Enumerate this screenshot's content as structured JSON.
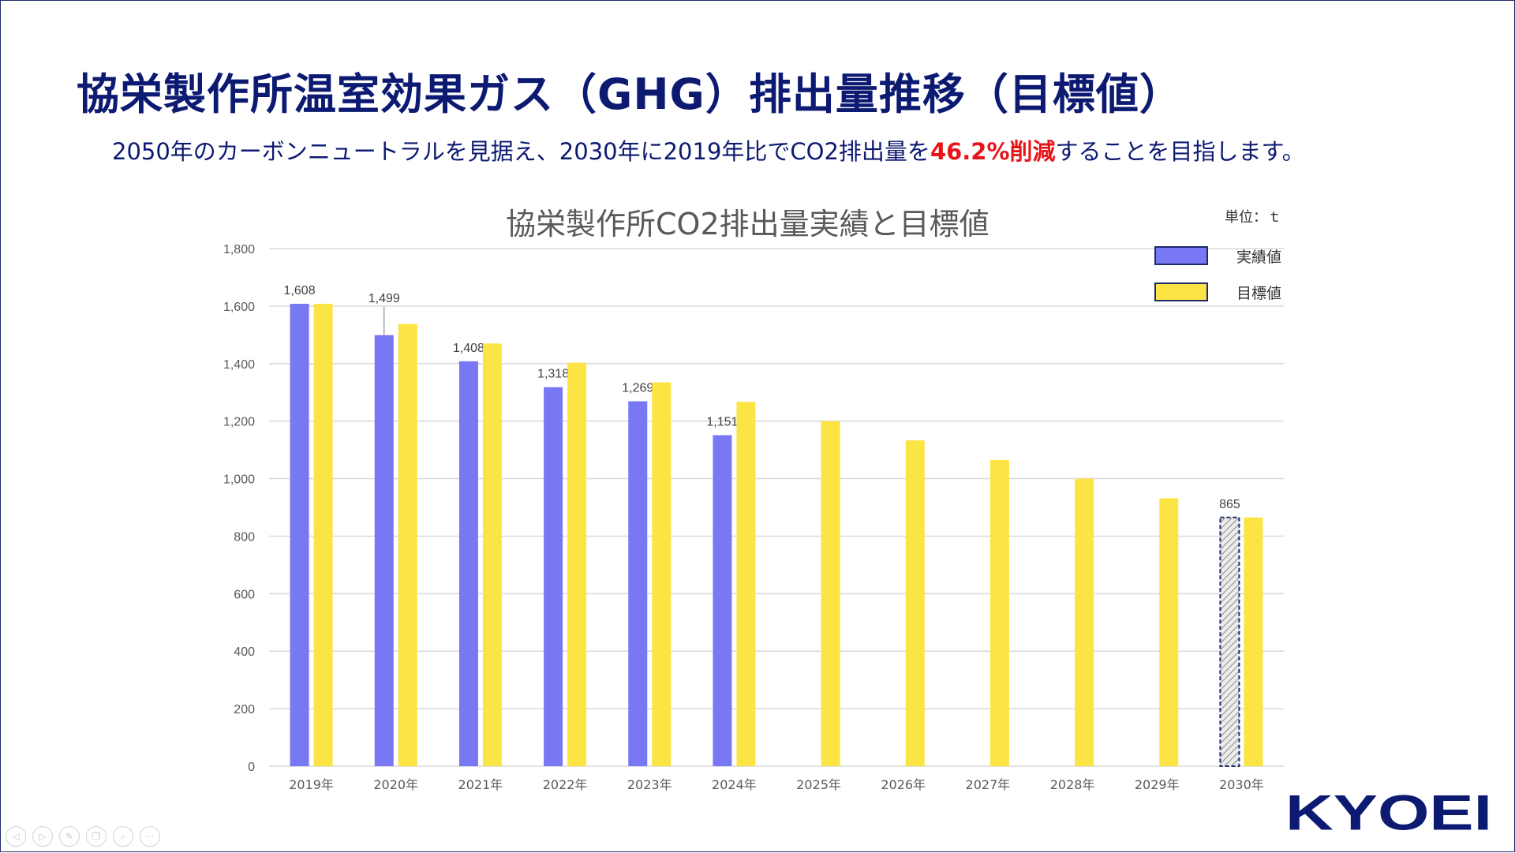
{
  "slide": {
    "title": "協栄製作所温室効果ガス（GHG）排出量推移（目標値）",
    "subtitle_before": "2050年のカーボンニュートラルを見据え、2030年に2019年比でCO2排出量を",
    "subtitle_highlight": "46.2%削減",
    "subtitle_after": "することを目指します。",
    "highlight_color": "#e8141a"
  },
  "chart_data": {
    "type": "bar",
    "title": "協栄製作所CO2排出量実績と目標値",
    "unit_label": "単位：ｔ",
    "categories": [
      "2019年",
      "2020年",
      "2021年",
      "2022年",
      "2023年",
      "2024年",
      "2025年",
      "2026年",
      "2027年",
      "2028年",
      "2029年",
      "2030年"
    ],
    "ylim": [
      0,
      1800
    ],
    "yticks": [
      "0",
      "200",
      "400",
      "600",
      "800",
      "1,000",
      "1,200",
      "1,400",
      "1,600",
      "1,800"
    ],
    "grid": true,
    "legend_position": "top-right",
    "series": [
      {
        "name": "実績値",
        "color": "#7878f5",
        "values": [
          1608,
          1499,
          1408,
          1318,
          1269,
          1151,
          null,
          null,
          null,
          null,
          null,
          865
        ],
        "labels": [
          "1,608",
          "1,499",
          "1,408",
          "1,318",
          "1,269",
          "1,151",
          "",
          "",
          "",
          "",
          "",
          "865"
        ],
        "hatched_index": 11
      },
      {
        "name": "目標値",
        "color": "#fde445",
        "values": [
          1608,
          1538,
          1470,
          1403,
          1335,
          1267,
          1200,
          1133,
          1065,
          1000,
          932,
          865
        ]
      }
    ]
  },
  "logo": {
    "text": "KYOEI",
    "color": "#0d1a72"
  },
  "nav": {
    "icons": [
      "prev-icon",
      "next-icon",
      "pen-icon",
      "slides-icon",
      "zoom-icon",
      "more-icon"
    ],
    "glyphs": [
      "◁",
      "▷",
      "✎",
      "❐",
      "⌕",
      "⋯"
    ]
  }
}
